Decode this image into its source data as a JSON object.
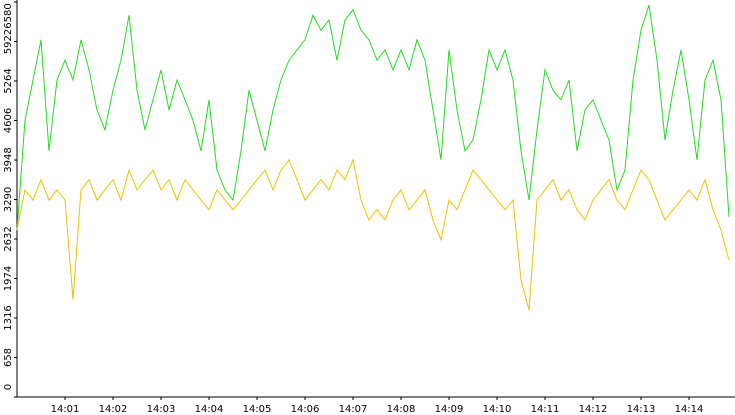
{
  "chart_data": {
    "type": "line",
    "categories": [
      null,
      null,
      null,
      null,
      null,
      null,
      "14:01",
      null,
      null,
      null,
      null,
      null,
      "14:02",
      null,
      null,
      null,
      null,
      null,
      "14:03",
      null,
      null,
      null,
      null,
      null,
      "14:04",
      null,
      null,
      null,
      null,
      null,
      "14:05",
      null,
      null,
      null,
      null,
      null,
      "14:06",
      null,
      null,
      null,
      null,
      null,
      "14:07",
      null,
      null,
      null,
      null,
      null,
      "14:08",
      null,
      null,
      null,
      null,
      null,
      "14:09",
      null,
      null,
      null,
      null,
      null,
      "14:10",
      null,
      null,
      null,
      null,
      null,
      "14:11",
      null,
      null,
      null,
      null,
      null,
      "14:12",
      null,
      null,
      null,
      null,
      null,
      "14:13",
      null,
      null,
      null,
      null,
      null,
      "14:14",
      null,
      null,
      null,
      null,
      null
    ],
    "series": [
      {
        "color": "#22dd22",
        "values": [
          2780,
          4610,
          5280,
          5950,
          4100,
          5280,
          5610,
          5280,
          5950,
          5450,
          4780,
          4450,
          5110,
          5610,
          6360,
          5110,
          4450,
          4950,
          5450,
          4780,
          5280,
          4950,
          4610,
          4100,
          4950,
          3780,
          3450,
          3280,
          4100,
          5110,
          4610,
          4100,
          4780,
          5280,
          5610,
          5780,
          5950,
          6360,
          6110,
          6280,
          5610,
          6280,
          6450,
          6110,
          5950,
          5610,
          5780,
          5450,
          5780,
          5450,
          5950,
          5610,
          4780,
          3950,
          5780,
          4780,
          4100,
          4280,
          4950,
          5780,
          5450,
          5780,
          5280,
          4100,
          3280,
          4450,
          5450,
          5110,
          4950,
          5280,
          4100,
          4780,
          4950,
          4610,
          4280,
          3450,
          3780,
          5280,
          6110,
          6530,
          5610,
          4280,
          5110,
          5780,
          4950,
          3950,
          5280,
          5610,
          4950,
          3000
        ]
      },
      {
        "color": "#f0c000",
        "values": [
          2780,
          3450,
          3280,
          3620,
          3280,
          3450,
          3280,
          1620,
          3450,
          3620,
          3280,
          3450,
          3620,
          3280,
          3780,
          3450,
          3620,
          3780,
          3450,
          3620,
          3280,
          3620,
          3450,
          3280,
          3120,
          3450,
          3280,
          3120,
          3280,
          3450,
          3620,
          3780,
          3450,
          3780,
          3950,
          3620,
          3280,
          3450,
          3620,
          3450,
          3780,
          3620,
          3950,
          3280,
          2950,
          3120,
          2950,
          3280,
          3450,
          3120,
          3280,
          3450,
          2950,
          2620,
          3280,
          3120,
          3450,
          3780,
          3620,
          3450,
          3280,
          3120,
          3280,
          1950,
          1450,
          3280,
          3450,
          3620,
          3280,
          3450,
          3120,
          2950,
          3280,
          3450,
          3620,
          3280,
          3120,
          3450,
          3780,
          3620,
          3280,
          2950,
          3120,
          3280,
          3450,
          3280,
          3620,
          3120,
          2780,
          2280
        ]
      }
    ],
    "ylim": [
      0,
      6580
    ],
    "yticks": [
      0,
      658,
      1316,
      1974,
      2632,
      3290,
      3948,
      4606,
      5264,
      5922,
      6580
    ]
  }
}
